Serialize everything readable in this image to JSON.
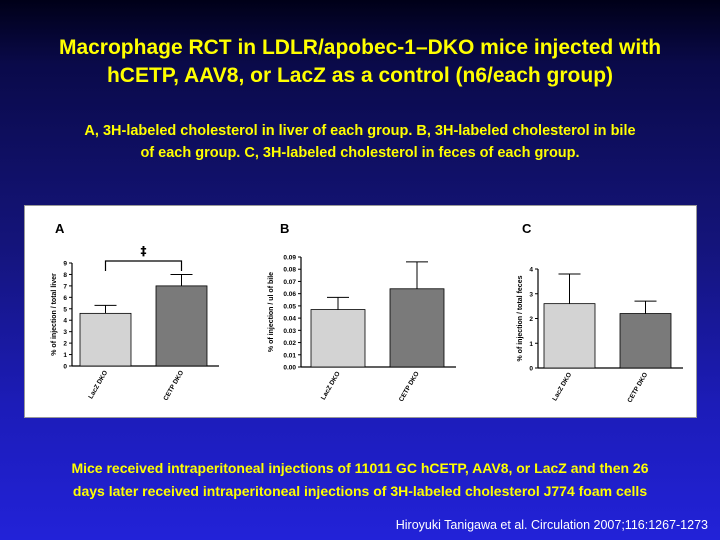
{
  "slide": {
    "title_line1": "Macrophage RCT in LDLR/apobec-1–DKO mice injected with",
    "title_line2": "hCETP, AAV8, or LacZ as a control (n6/each group)",
    "subtitle_line1": "A, 3H-labeled cholesterol in liver of each group. B, 3H-labeled cholesterol in bile",
    "subtitle_line2": "of each group. C, 3H-labeled cholesterol in feces of each group.",
    "footnote_line1": "Mice received intraperitoneal injections of 11011 GC hCETP, AAV8, or LacZ and then 26",
    "footnote_line2": "days later received intraperitoneal injections of 3H-labeled cholesterol J774 foam cells",
    "citation": "Hiroyuki Tanigawa et al. Circulation 2007;116:1267-1273"
  },
  "colors": {
    "text_accent": "#ffff00",
    "bar_lacz": "#d3d3d3",
    "bar_cetp": "#7a7a7a"
  },
  "chart_data": [
    {
      "type": "bar",
      "panel": "A",
      "categories": [
        "LacZ DKO",
        "CETP DKO"
      ],
      "values": [
        4.6,
        7.0
      ],
      "errors": [
        0.7,
        1.0
      ],
      "ylabel": "% of injection / total liver",
      "ylim": [
        0,
        9
      ],
      "yticks": [
        "0",
        "1",
        "2",
        "3",
        "4",
        "5",
        "6",
        "7",
        "8",
        "9"
      ],
      "significance": "‡"
    },
    {
      "type": "bar",
      "panel": "B",
      "categories": [
        "LacZ DKO",
        "CETP DKO"
      ],
      "values": [
        0.047,
        0.064
      ],
      "errors": [
        0.01,
        0.022
      ],
      "ylabel": "% of injection / ul of bile",
      "ylim": [
        0,
        0.09
      ],
      "yticks": [
        "0.00",
        "0.01",
        "0.02",
        "0.03",
        "0.04",
        "0.05",
        "0.06",
        "0.07",
        "0.08",
        "0.09"
      ]
    },
    {
      "type": "bar",
      "panel": "C",
      "categories": [
        "LacZ DKO",
        "CETP DKO"
      ],
      "values": [
        2.6,
        2.2
      ],
      "errors": [
        1.2,
        0.5
      ],
      "ylabel": "% of injection / total feces",
      "ylim": [
        0,
        4
      ],
      "yticks": [
        "0",
        "1",
        "2",
        "3",
        "4"
      ]
    }
  ]
}
